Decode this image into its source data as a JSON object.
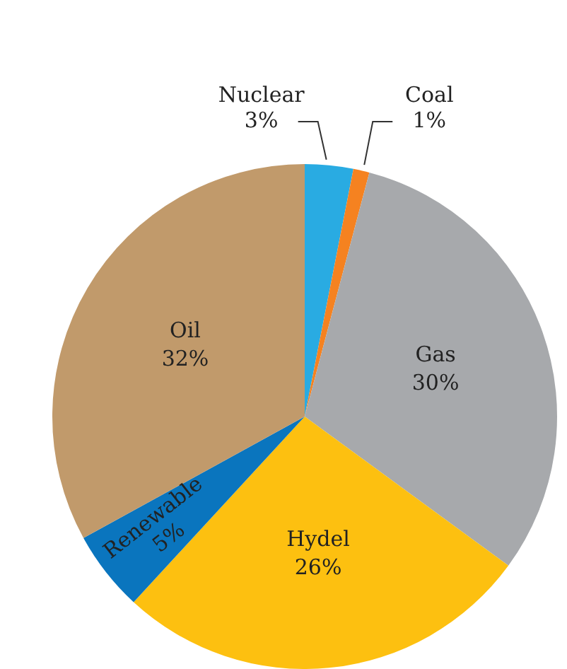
{
  "chart_data": {
    "type": "pie",
    "categories": [
      "Nuclear",
      "Coal",
      "Gas",
      "Hydel",
      "Renewable",
      "Oil"
    ],
    "values": [
      3,
      1,
      30,
      26,
      5,
      32
    ],
    "value_labels": [
      "3%",
      "1%",
      "30%",
      "26%",
      "5%",
      "32%"
    ],
    "colors": [
      "#29abe2",
      "#f58220",
      "#a7a9ac",
      "#fdc010",
      "#0a75be",
      "#c19a6b"
    ],
    "legend": false
  }
}
